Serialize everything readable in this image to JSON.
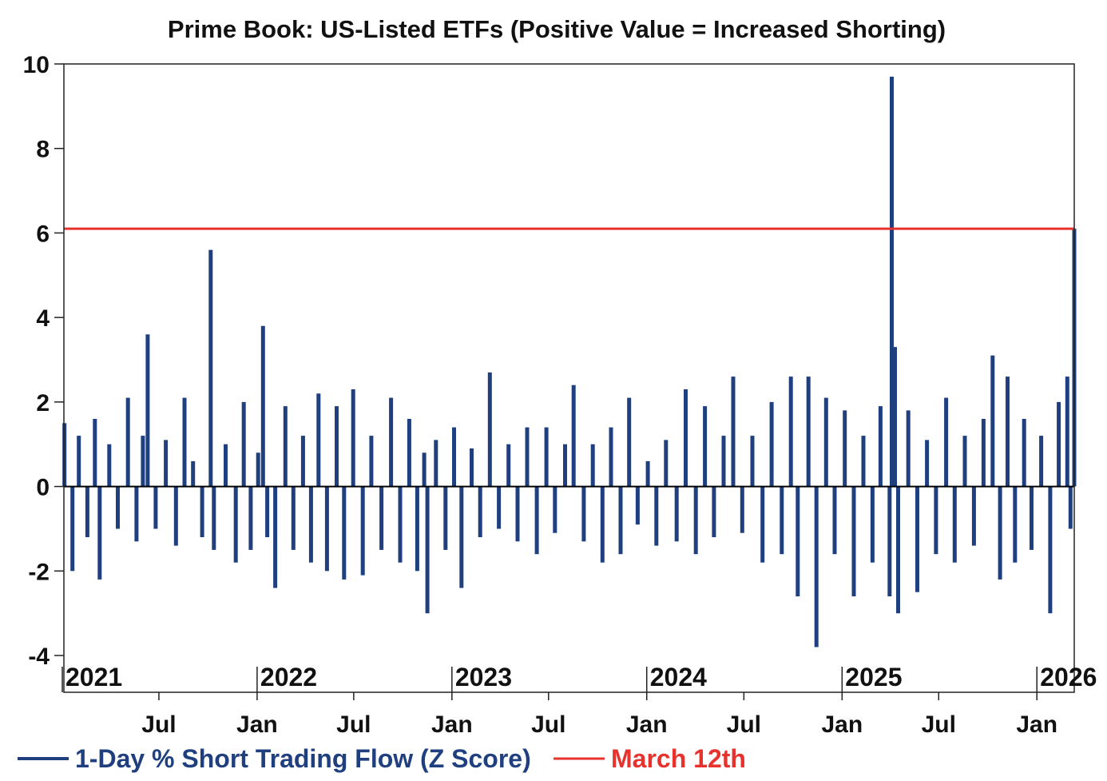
{
  "chart_data": {
    "type": "bar",
    "title": "Prime Book: US-Listed ETFs (Positive Value = Increased Shorting)",
    "xlabel": "",
    "ylabel": "",
    "ylim": [
      -4,
      10
    ],
    "yticks": [
      "10",
      "8",
      "6",
      "4",
      "2",
      "0",
      "-2",
      "-4"
    ],
    "x_range": [
      "2021-01-04",
      "2026-03-12"
    ],
    "year_labels": [
      {
        "label": "2021",
        "date": "2021-01-01"
      },
      {
        "label": "2022",
        "date": "2022-01-01"
      },
      {
        "label": "2023",
        "date": "2023-01-01"
      },
      {
        "label": "2024",
        "date": "2024-01-01"
      },
      {
        "label": "2025",
        "date": "2025-01-01"
      },
      {
        "label": "2026",
        "date": "2026-01-01"
      }
    ],
    "month_labels": [
      {
        "label": "Jul",
        "date": "2021-07-01"
      },
      {
        "label": "Jan",
        "date": "2022-01-01"
      },
      {
        "label": "Jul",
        "date": "2022-07-01"
      },
      {
        "label": "Jan",
        "date": "2023-01-01"
      },
      {
        "label": "Jul",
        "date": "2023-07-01"
      },
      {
        "label": "Jan",
        "date": "2024-01-01"
      },
      {
        "label": "Jul",
        "date": "2024-07-01"
      },
      {
        "label": "Jan",
        "date": "2025-01-01"
      },
      {
        "label": "Jul",
        "date": "2025-07-01"
      },
      {
        "label": "Jan",
        "date": "2026-01-01"
      }
    ],
    "series": [
      {
        "name": "1-Day % Short Trading Flow (Z Score)",
        "color": "#1f3f7f",
        "style": "bar",
        "points": [
          [
            "2021-01-05",
            1.5
          ],
          [
            "2021-01-20",
            -2.0
          ],
          [
            "2021-02-01",
            1.2
          ],
          [
            "2021-02-17",
            -1.2
          ],
          [
            "2021-03-03",
            1.6
          ],
          [
            "2021-03-12",
            -2.2
          ],
          [
            "2021-03-30",
            1.0
          ],
          [
            "2021-04-15",
            -1.0
          ],
          [
            "2021-05-04",
            2.1
          ],
          [
            "2021-05-20",
            -1.3
          ],
          [
            "2021-06-01",
            1.2
          ],
          [
            "2021-06-10",
            3.6
          ],
          [
            "2021-06-25",
            -1.0
          ],
          [
            "2021-07-14",
            1.1
          ],
          [
            "2021-08-02",
            -1.4
          ],
          [
            "2021-08-18",
            2.1
          ],
          [
            "2021-09-03",
            0.6
          ],
          [
            "2021-09-20",
            -1.2
          ],
          [
            "2021-10-06",
            5.6
          ],
          [
            "2021-10-12",
            -1.5
          ],
          [
            "2021-11-03",
            1.0
          ],
          [
            "2021-11-22",
            -1.8
          ],
          [
            "2021-12-07",
            2.0
          ],
          [
            "2021-12-20",
            -1.5
          ],
          [
            "2022-01-03",
            0.8
          ],
          [
            "2022-01-12",
            3.8
          ],
          [
            "2022-01-20",
            -1.2
          ],
          [
            "2022-02-04",
            -2.4
          ],
          [
            "2022-02-23",
            1.9
          ],
          [
            "2022-03-10",
            -1.5
          ],
          [
            "2022-03-28",
            1.2
          ],
          [
            "2022-04-12",
            -1.8
          ],
          [
            "2022-04-26",
            2.2
          ],
          [
            "2022-05-12",
            -2.0
          ],
          [
            "2022-05-30",
            1.9
          ],
          [
            "2022-06-13",
            -2.2
          ],
          [
            "2022-06-30",
            2.3
          ],
          [
            "2022-07-18",
            -2.1
          ],
          [
            "2022-08-03",
            1.2
          ],
          [
            "2022-08-22",
            -1.5
          ],
          [
            "2022-09-09",
            2.1
          ],
          [
            "2022-09-26",
            -1.8
          ],
          [
            "2022-10-13",
            1.6
          ],
          [
            "2022-10-28",
            -2.0
          ],
          [
            "2022-11-10",
            0.8
          ],
          [
            "2022-11-16",
            -3.0
          ],
          [
            "2022-12-02",
            1.1
          ],
          [
            "2022-12-20",
            -1.5
          ],
          [
            "2023-01-05",
            1.4
          ],
          [
            "2023-01-19",
            -2.4
          ],
          [
            "2023-02-07",
            0.9
          ],
          [
            "2023-02-23",
            -1.2
          ],
          [
            "2023-03-13",
            2.7
          ],
          [
            "2023-03-30",
            -1.0
          ],
          [
            "2023-04-17",
            1.0
          ],
          [
            "2023-05-04",
            -1.3
          ],
          [
            "2023-05-22",
            1.4
          ],
          [
            "2023-06-09",
            -1.6
          ],
          [
            "2023-06-27",
            1.4
          ],
          [
            "2023-07-13",
            -1.1
          ],
          [
            "2023-08-01",
            1.0
          ],
          [
            "2023-08-17",
            2.4
          ],
          [
            "2023-09-05",
            -1.3
          ],
          [
            "2023-09-22",
            1.0
          ],
          [
            "2023-10-10",
            -1.8
          ],
          [
            "2023-10-26",
            1.4
          ],
          [
            "2023-11-13",
            -1.6
          ],
          [
            "2023-11-29",
            2.1
          ],
          [
            "2023-12-15",
            -0.9
          ],
          [
            "2024-01-03",
            0.6
          ],
          [
            "2024-01-19",
            -1.4
          ],
          [
            "2024-02-06",
            1.1
          ],
          [
            "2024-02-26",
            -1.3
          ],
          [
            "2024-03-14",
            2.3
          ],
          [
            "2024-04-02",
            -1.6
          ],
          [
            "2024-04-19",
            1.9
          ],
          [
            "2024-05-06",
            -1.2
          ],
          [
            "2024-05-24",
            1.2
          ],
          [
            "2024-06-11",
            2.6
          ],
          [
            "2024-06-28",
            -1.1
          ],
          [
            "2024-07-17",
            1.2
          ],
          [
            "2024-08-05",
            -1.8
          ],
          [
            "2024-08-22",
            2.0
          ],
          [
            "2024-09-10",
            -1.6
          ],
          [
            "2024-09-27",
            2.6
          ],
          [
            "2024-10-10",
            -2.6
          ],
          [
            "2024-10-30",
            2.6
          ],
          [
            "2024-11-14",
            -3.8
          ],
          [
            "2024-12-02",
            2.1
          ],
          [
            "2024-12-18",
            -1.6
          ],
          [
            "2025-01-06",
            1.8
          ],
          [
            "2025-01-23",
            -2.6
          ],
          [
            "2025-02-10",
            1.2
          ],
          [
            "2025-02-27",
            -1.8
          ],
          [
            "2025-03-14",
            1.9
          ],
          [
            "2025-03-31",
            -2.6
          ],
          [
            "2025-04-04",
            9.7
          ],
          [
            "2025-04-10",
            3.3
          ],
          [
            "2025-04-16",
            -3.0
          ],
          [
            "2025-05-05",
            1.8
          ],
          [
            "2025-05-22",
            -2.5
          ],
          [
            "2025-06-09",
            1.1
          ],
          [
            "2025-06-26",
            -1.6
          ],
          [
            "2025-07-15",
            2.1
          ],
          [
            "2025-07-31",
            -1.8
          ],
          [
            "2025-08-19",
            1.2
          ],
          [
            "2025-09-05",
            -1.4
          ],
          [
            "2025-09-23",
            1.6
          ],
          [
            "2025-10-10",
            3.1
          ],
          [
            "2025-10-24",
            -2.2
          ],
          [
            "2025-11-07",
            2.6
          ],
          [
            "2025-11-21",
            -1.8
          ],
          [
            "2025-12-08",
            1.6
          ],
          [
            "2025-12-22",
            -1.5
          ],
          [
            "2026-01-09",
            1.2
          ],
          [
            "2026-01-26",
            -3.0
          ],
          [
            "2026-02-11",
            2.0
          ],
          [
            "2026-02-27",
            2.6
          ],
          [
            "2026-03-05",
            -1.0
          ],
          [
            "2026-03-12",
            6.1
          ]
        ]
      },
      {
        "name": "March 12th",
        "color": "#e8322e",
        "style": "hline",
        "value": 6.1
      }
    ],
    "grid": false,
    "legend": "bottom-left"
  }
}
